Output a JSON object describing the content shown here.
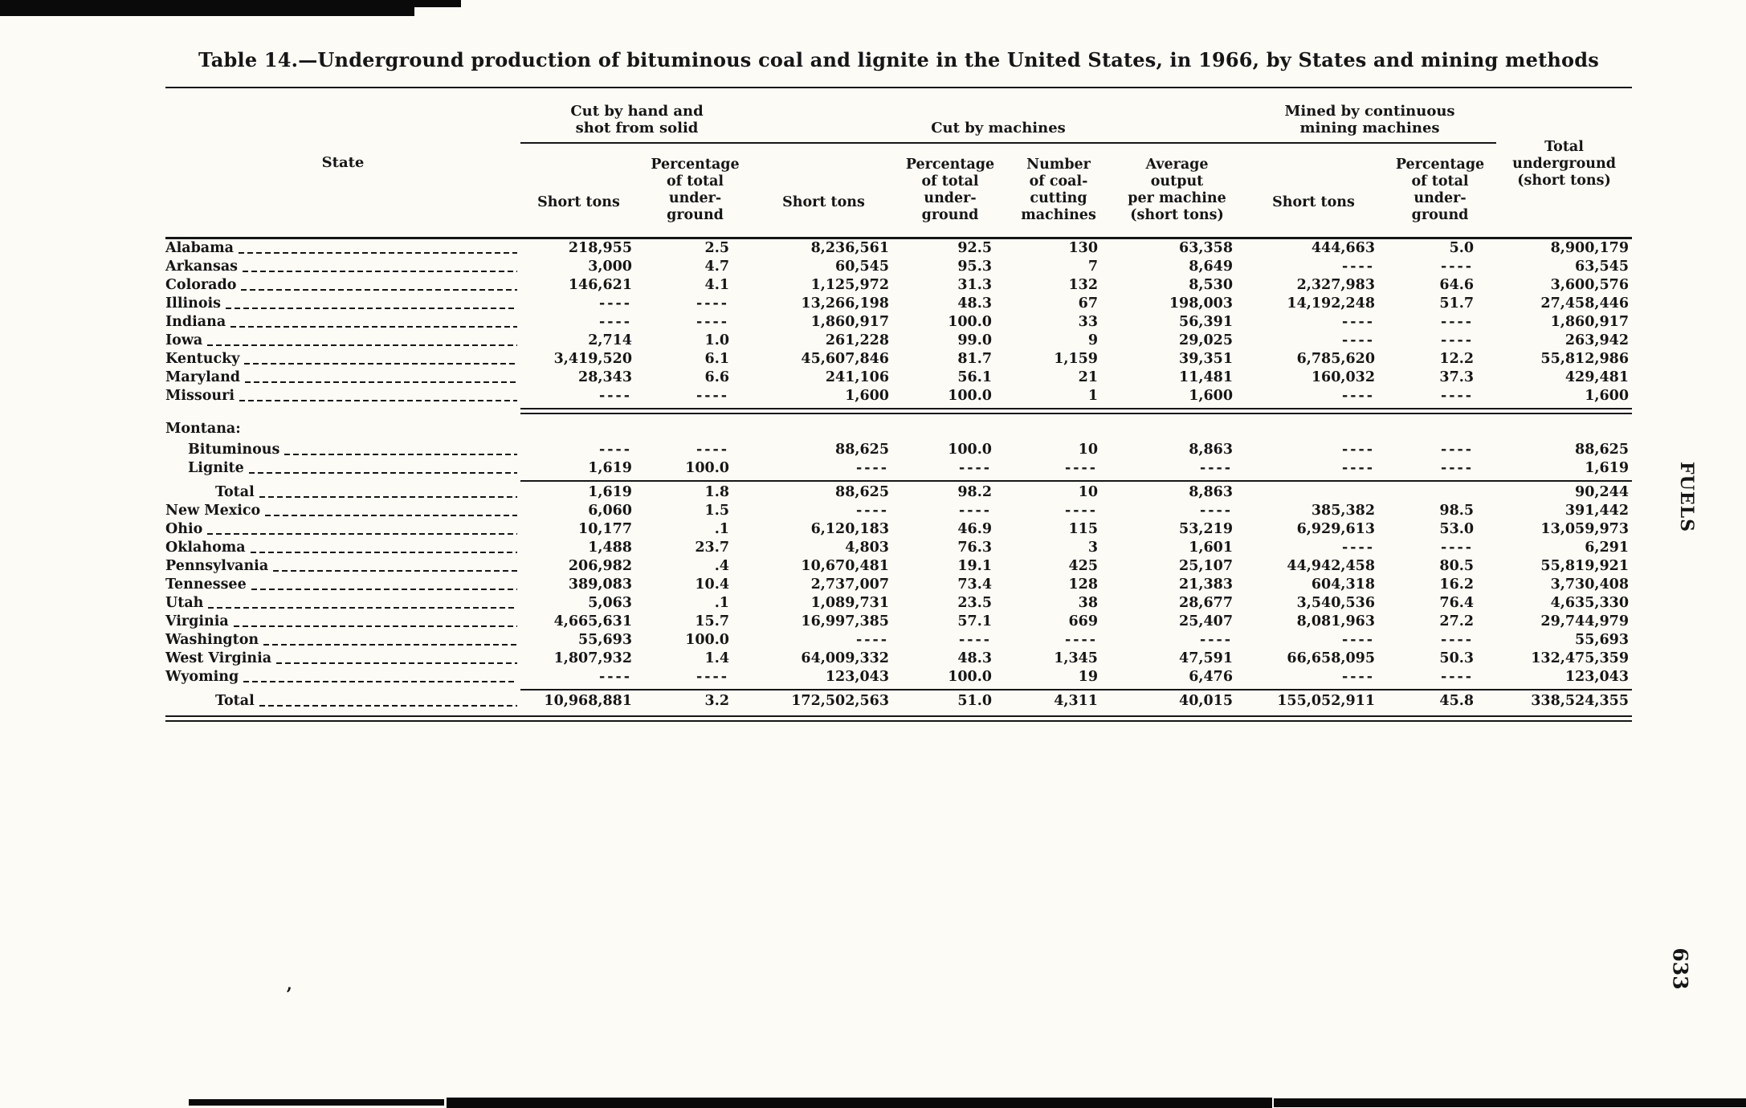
{
  "page": {
    "title": "Table 14.—Underground production of bituminous coal and lignite in the United States, in 1966, by States and mining methods",
    "side_label": "FUELS",
    "page_number": "633",
    "stray_mark": "’"
  },
  "table": {
    "headers": {
      "state": "State",
      "group_hand": "Cut by hand and\nshot from solid",
      "group_machines": "Cut by machines",
      "group_continuous": "Mined by continuous\nmining machines",
      "sub": [
        "Short tons",
        "Percentage\nof total\nunder-\nground",
        "Short tons",
        "Percentage\nof total\nunder-\nground",
        "Number\nof coal-\ncutting\nmachines",
        "Average\noutput\nper machine\n(short tons)",
        "Short tons",
        "Percentage\nof total\nunder-\nground"
      ],
      "total": "Total\nunderground\n(short tons)"
    },
    "rows": [
      {
        "type": "data",
        "label": "Alabama",
        "cells": [
          "218,955",
          "2.5",
          "8,236,561",
          "92.5",
          "130",
          "63,358",
          "444,663",
          "5.0",
          "8,900,179"
        ]
      },
      {
        "type": "data",
        "label": "Arkansas",
        "cells": [
          "3,000",
          "4.7",
          "60,545",
          "95.3",
          "7",
          "8,649",
          "----",
          "----",
          "63,545"
        ]
      },
      {
        "type": "data",
        "label": "Colorado",
        "cells": [
          "146,621",
          "4.1",
          "1,125,972",
          "31.3",
          "132",
          "8,530",
          "2,327,983",
          "64.6",
          "3,600,576"
        ]
      },
      {
        "type": "data",
        "label": "Illinois",
        "cells": [
          "----",
          "----",
          "13,266,198",
          "48.3",
          "67",
          "198,003",
          "14,192,248",
          "51.7",
          "27,458,446"
        ]
      },
      {
        "type": "data",
        "label": "Indiana",
        "cells": [
          "----",
          "----",
          "1,860,917",
          "100.0",
          "33",
          "56,391",
          "----",
          "----",
          "1,860,917"
        ]
      },
      {
        "type": "data",
        "label": "Iowa",
        "cells": [
          "2,714",
          "1.0",
          "261,228",
          "99.0",
          "9",
          "29,025",
          "----",
          "----",
          "263,942"
        ]
      },
      {
        "type": "data",
        "label": "Kentucky",
        "cells": [
          "3,419,520",
          "6.1",
          "45,607,846",
          "81.7",
          "1,159",
          "39,351",
          "6,785,620",
          "12.2",
          "55,812,986"
        ]
      },
      {
        "type": "data",
        "label": "Maryland",
        "cells": [
          "28,343",
          "6.6",
          "241,106",
          "56.1",
          "21",
          "11,481",
          "160,032",
          "37.3",
          "429,481"
        ]
      },
      {
        "type": "data",
        "label": "Missouri",
        "cells": [
          "----",
          "----",
          "1,600",
          "100.0",
          "1",
          "1,600",
          "----",
          "----",
          "1,600"
        ]
      },
      {
        "type": "section",
        "label": "Montana:",
        "rule_above": "double"
      },
      {
        "type": "data",
        "label": "Bituminous",
        "indent": 1,
        "cells": [
          "----",
          "----",
          "88,625",
          "100.0",
          "10",
          "8,863",
          "----",
          "----",
          "88,625"
        ]
      },
      {
        "type": "data",
        "label": "Lignite",
        "indent": 1,
        "cells": [
          "1,619",
          "100.0",
          "----",
          "----",
          "----",
          "----",
          "----",
          "----",
          "1,619"
        ]
      },
      {
        "type": "total",
        "label": "Total",
        "indent": 2,
        "rule_above": "single",
        "cells": [
          "1,619",
          "1.8",
          "88,625",
          "98.2",
          "10",
          "8,863",
          "",
          "",
          "90,244"
        ]
      },
      {
        "type": "data",
        "label": "New Mexico",
        "cells": [
          "6,060",
          "1.5",
          "----",
          "----",
          "----",
          "----",
          "385,382",
          "98.5",
          "391,442"
        ]
      },
      {
        "type": "data",
        "label": "Ohio",
        "cells": [
          "10,177",
          ".1",
          "6,120,183",
          "46.9",
          "115",
          "53,219",
          "6,929,613",
          "53.0",
          "13,059,973"
        ]
      },
      {
        "type": "data",
        "label": "Oklahoma",
        "cells": [
          "1,488",
          "23.7",
          "4,803",
          "76.3",
          "3",
          "1,601",
          "----",
          "----",
          "6,291"
        ]
      },
      {
        "type": "data",
        "label": "Pennsylvania",
        "cells": [
          "206,982",
          ".4",
          "10,670,481",
          "19.1",
          "425",
          "25,107",
          "44,942,458",
          "80.5",
          "55,819,921"
        ]
      },
      {
        "type": "data",
        "label": "Tennessee",
        "cells": [
          "389,083",
          "10.4",
          "2,737,007",
          "73.4",
          "128",
          "21,383",
          "604,318",
          "16.2",
          "3,730,408"
        ]
      },
      {
        "type": "data",
        "label": "Utah",
        "cells": [
          "5,063",
          ".1",
          "1,089,731",
          "23.5",
          "38",
          "28,677",
          "3,540,536",
          "76.4",
          "4,635,330"
        ]
      },
      {
        "type": "data",
        "label": "Virginia",
        "cells": [
          "4,665,631",
          "15.7",
          "16,997,385",
          "57.1",
          "669",
          "25,407",
          "8,081,963",
          "27.2",
          "29,744,979"
        ]
      },
      {
        "type": "data",
        "label": "Washington",
        "cells": [
          "55,693",
          "100.0",
          "----",
          "----",
          "----",
          "----",
          "----",
          "----",
          "55,693"
        ]
      },
      {
        "type": "data",
        "label": "West Virginia",
        "cells": [
          "1,807,932",
          "1.4",
          "64,009,332",
          "48.3",
          "1,345",
          "47,591",
          "66,658,095",
          "50.3",
          "132,475,359"
        ]
      },
      {
        "type": "data",
        "label": "Wyoming",
        "cells": [
          "----",
          "----",
          "123,043",
          "100.0",
          "19",
          "6,476",
          "----",
          "----",
          "123,043"
        ]
      },
      {
        "type": "total",
        "label": "Total",
        "indent": 2,
        "rule_above": "single",
        "cells": [
          "10,968,881",
          "3.2",
          "172,502,563",
          "51.0",
          "4,311",
          "40,015",
          "155,052,911",
          "45.8",
          "338,524,355"
        ]
      }
    ]
  }
}
